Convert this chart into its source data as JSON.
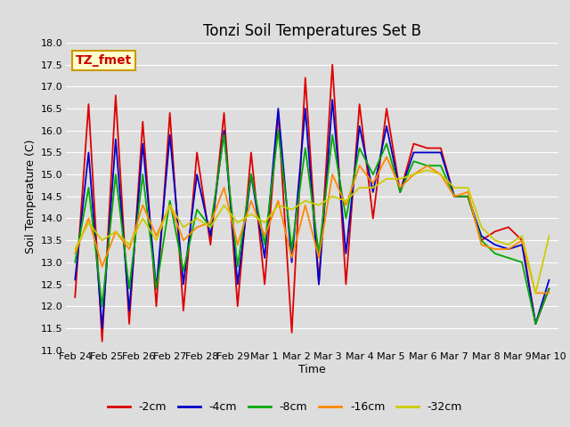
{
  "title": "Tonzi Soil Temperatures Set B",
  "xlabel": "Time",
  "ylabel": "Soil Temperature (C)",
  "annotation": "TZ_fmet",
  "ylim": [
    11.0,
    18.0
  ],
  "yticks": [
    11.0,
    11.5,
    12.0,
    12.5,
    13.0,
    13.5,
    14.0,
    14.5,
    15.0,
    15.5,
    16.0,
    16.5,
    17.0,
    17.5,
    18.0
  ],
  "x_labels": [
    "Feb 24",
    "Feb 25",
    "Feb 26",
    "Feb 27",
    "Feb 28",
    "Feb 29",
    "Mar 1",
    "Mar 2",
    "Mar 3",
    "Mar 4",
    "Mar 5",
    "Mar 6",
    "Mar 7",
    "Mar 8",
    "Mar 9",
    "Mar 10"
  ],
  "series": {
    "-2cm": {
      "color": "#dd0000",
      "values": [
        12.2,
        16.6,
        11.2,
        16.8,
        11.6,
        16.2,
        12.0,
        16.4,
        11.9,
        15.5,
        13.4,
        16.4,
        12.0,
        15.5,
        12.5,
        16.4,
        11.4,
        17.2,
        12.5,
        17.5,
        12.5,
        16.6,
        14.0,
        16.5,
        14.6,
        15.7,
        15.6,
        15.6,
        14.5,
        14.5,
        13.5,
        13.7,
        13.8,
        13.5,
        11.6,
        12.4
      ]
    },
    "-4cm": {
      "color": "#0000cc",
      "values": [
        12.6,
        15.5,
        11.5,
        15.8,
        11.9,
        15.7,
        12.4,
        15.9,
        12.5,
        15.0,
        13.6,
        16.0,
        12.5,
        15.0,
        13.1,
        16.5,
        13.0,
        16.5,
        12.5,
        16.7,
        13.2,
        16.1,
        14.6,
        16.1,
        14.6,
        15.5,
        15.5,
        15.5,
        14.5,
        14.5,
        13.6,
        13.4,
        13.3,
        13.4,
        11.6,
        12.6
      ]
    },
    "-8cm": {
      "color": "#00aa00",
      "values": [
        13.0,
        14.7,
        12.0,
        15.0,
        12.4,
        15.0,
        12.4,
        14.4,
        12.8,
        14.2,
        13.8,
        15.9,
        12.9,
        15.0,
        13.4,
        16.0,
        13.3,
        15.6,
        13.2,
        15.9,
        14.0,
        15.6,
        15.0,
        15.7,
        14.6,
        15.3,
        15.2,
        15.2,
        14.5,
        14.5,
        13.5,
        13.2,
        13.1,
        13.0,
        11.6,
        12.4
      ]
    },
    "-16cm": {
      "color": "#ff8800",
      "values": [
        13.2,
        14.0,
        12.9,
        13.7,
        13.3,
        14.3,
        13.6,
        14.3,
        13.5,
        13.8,
        13.9,
        14.7,
        13.4,
        14.4,
        13.6,
        14.4,
        13.1,
        14.3,
        13.1,
        15.0,
        14.3,
        15.2,
        14.8,
        15.4,
        14.7,
        15.0,
        15.2,
        15.0,
        14.5,
        14.6,
        13.4,
        13.3,
        13.3,
        13.5,
        12.3,
        12.3
      ]
    },
    "-32cm": {
      "color": "#cccc00",
      "values": [
        13.3,
        13.9,
        13.5,
        13.7,
        13.4,
        14.0,
        13.5,
        14.3,
        13.8,
        14.0,
        13.8,
        14.3,
        13.9,
        14.1,
        13.9,
        14.3,
        14.2,
        14.4,
        14.3,
        14.5,
        14.4,
        14.7,
        14.7,
        14.9,
        14.9,
        15.0,
        15.1,
        15.0,
        14.7,
        14.7,
        13.8,
        13.5,
        13.4,
        13.6,
        12.3,
        13.6
      ]
    }
  },
  "background_color": "#dddddd",
  "plot_bg_color": "#dddddd",
  "grid_color": "#ffffff",
  "title_fontsize": 12,
  "axis_fontsize": 9,
  "tick_fontsize": 8,
  "legend_fontsize": 9,
  "annotation_bg": "#ffffcc",
  "annotation_fg": "#cc0000",
  "annotation_border": "#cc9900",
  "linewidth": 1.3
}
